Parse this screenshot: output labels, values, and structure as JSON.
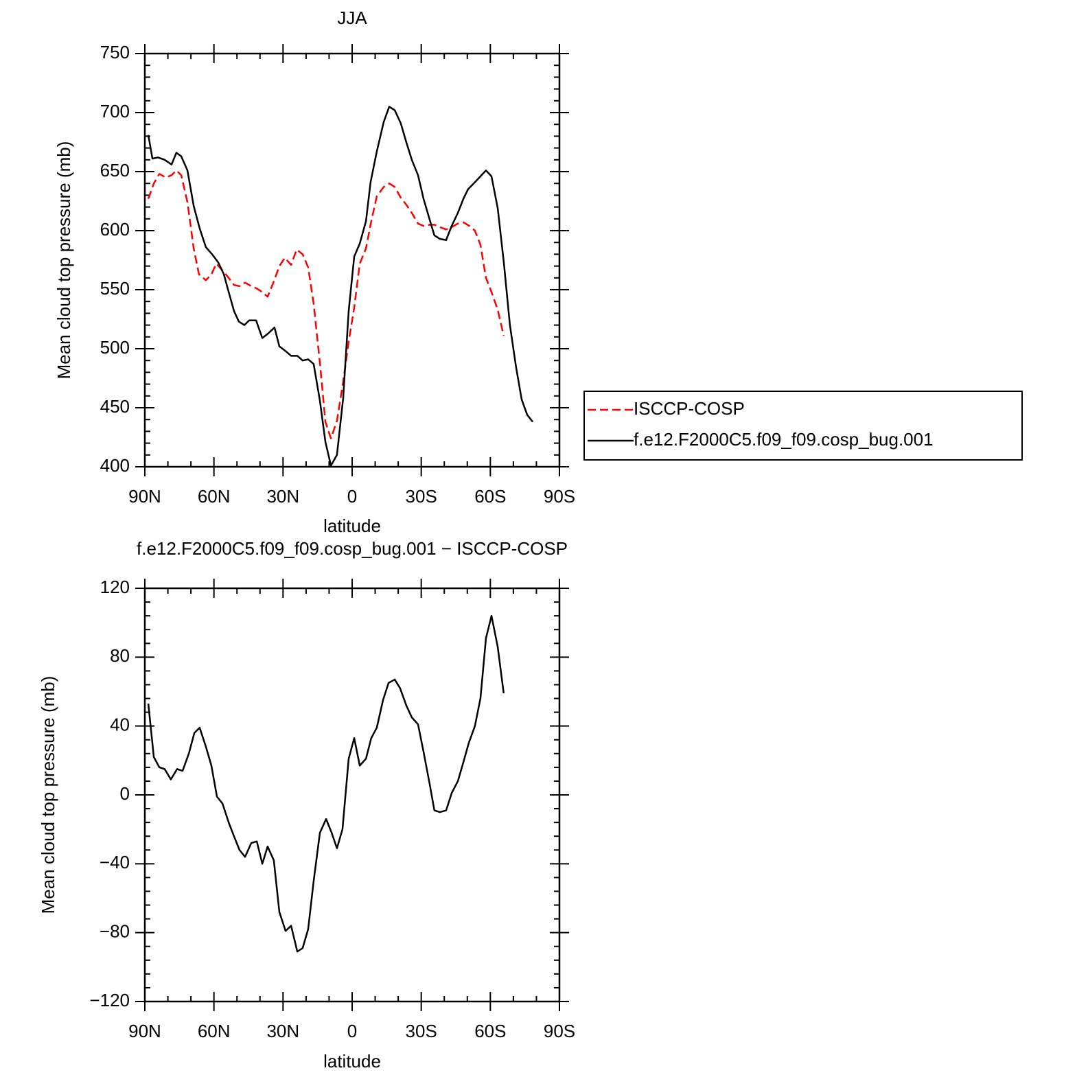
{
  "chart_data": [
    {
      "type": "line",
      "title": "JJA",
      "xlabel": "latitude",
      "ylabel": "Mean cloud top pressure (mb)",
      "xlim": [
        90,
        -90
      ],
      "xticks": [
        {
          "value": 90,
          "label": "90N"
        },
        {
          "value": 60,
          "label": "60N"
        },
        {
          "value": 30,
          "label": "30N"
        },
        0,
        {
          "value": -30,
          "label": "30S"
        },
        {
          "value": -60,
          "label": "60S"
        },
        {
          "value": -90,
          "label": "90S"
        }
      ],
      "ylim": [
        400,
        750
      ],
      "yticks": [
        400,
        450,
        500,
        550,
        600,
        650,
        700,
        750
      ],
      "legend": "right",
      "series": [
        {
          "name": "ISCCP-COSP",
          "color": "#ff0000",
          "dashed": true,
          "x": [
            88.5,
            86.1,
            83.7,
            80.8,
            78.4,
            76.3,
            74.2,
            71.5,
            68.8,
            66.5,
            63.5,
            61.1,
            59.0,
            56.6,
            54.0,
            51.3,
            48.9,
            46.5,
            43.8,
            41.4,
            39.0,
            36.7,
            34.0,
            31.6,
            29.2,
            26.5,
            24.1,
            21.5,
            19.1,
            16.7,
            14.0,
            11.6,
            9.2,
            6.6,
            3.9,
            1.5,
            -0.9,
            -3.3,
            -6.0,
            -8.3,
            -10.7,
            -13.7,
            -16.1,
            -18.5,
            -21.1,
            -23.5,
            -25.9,
            -28.6,
            -31.0,
            -33.7,
            -35.7,
            -38.1,
            -40.8,
            -43.2,
            -45.9,
            -48.3,
            -50.9,
            -53.3,
            -55.7,
            -58.1,
            -60.5,
            -63.2,
            -65.8
          ],
          "values": [
            627,
            640,
            648,
            645,
            647,
            651,
            647,
            624,
            585,
            563,
            558,
            563,
            572,
            567,
            561,
            554,
            553,
            556,
            553,
            551,
            548,
            544,
            557,
            570,
            577,
            571,
            584,
            580,
            569,
            538,
            488,
            438,
            424,
            439,
            472,
            506,
            535,
            572,
            585,
            608,
            629,
            637,
            640,
            637,
            628,
            622,
            615,
            606,
            604,
            605,
            605,
            603,
            601,
            603,
            606,
            607,
            604,
            600,
            588,
            560,
            548,
            533,
            511
          ]
        },
        {
          "name": "f.e12.F2000C5.f09_f09.cosp_bug.001",
          "color": "#000000",
          "dashed": false,
          "x": [
            88.5,
            86.7,
            84.3,
            81.4,
            78.4,
            76.3,
            74.2,
            71.5,
            68.8,
            66.2,
            63.5,
            60.8,
            58.1,
            55.7,
            53.6,
            51.3,
            49.2,
            46.8,
            44.7,
            41.7,
            39.0,
            36.4,
            33.7,
            31.6,
            28.9,
            26.5,
            23.8,
            21.5,
            19.1,
            16.7,
            14.0,
            11.6,
            9.2,
            6.6,
            3.9,
            1.5,
            -0.9,
            -3.3,
            -6.0,
            -8.0,
            -10.7,
            -13.7,
            -16.1,
            -18.5,
            -21.1,
            -23.5,
            -25.9,
            -28.6,
            -31.0,
            -33.7,
            -35.7,
            -38.1,
            -40.8,
            -43.2,
            -45.9,
            -48.3,
            -50.3,
            -53.3,
            -55.7,
            -58.1,
            -60.5,
            -63.2,
            -65.8,
            -68.5,
            -71.2,
            -73.6,
            -76.0,
            -78.4
          ],
          "values": [
            681,
            661,
            662,
            660,
            656,
            666,
            663,
            651,
            621,
            602,
            586,
            580,
            573,
            563,
            548,
            532,
            523,
            520,
            524,
            524,
            509,
            513,
            518,
            502,
            498,
            494,
            494,
            490,
            491,
            487,
            456,
            421,
            401,
            410,
            458,
            532,
            578,
            589,
            608,
            641,
            667,
            692,
            705,
            702,
            691,
            675,
            660,
            647,
            627,
            609,
            596,
            593,
            592,
            604,
            615,
            627,
            635,
            641,
            646,
            651,
            646,
            619,
            574,
            520,
            484,
            457,
            444,
            438
          ]
        }
      ]
    },
    {
      "type": "line",
      "title": "f.e12.F2000C5.f09_f09.cosp_bug.001 − ISCCP-COSP",
      "xlabel": "latitude",
      "ylabel": "Mean cloud top pressure (mb)",
      "xlim": [
        90,
        -90
      ],
      "xticks": [
        {
          "value": 90,
          "label": "90N"
        },
        {
          "value": 60,
          "label": "60N"
        },
        {
          "value": 30,
          "label": "30N"
        },
        0,
        {
          "value": -30,
          "label": "30S"
        },
        {
          "value": -60,
          "label": "60S"
        },
        {
          "value": -90,
          "label": "90S"
        }
      ],
      "ylim": [
        -120,
        120
      ],
      "yticks": [
        {
          "value": -120,
          "label": "−120"
        },
        {
          "value": -80,
          "label": "−80"
        },
        {
          "value": -40,
          "label": "−40"
        },
        0,
        40,
        80,
        120
      ],
      "series": [
        {
          "color": "#000000",
          "dashed": false,
          "x": [
            88.5,
            86.1,
            83.7,
            81.4,
            78.7,
            76.0,
            73.6,
            70.9,
            68.5,
            66.2,
            63.5,
            61.1,
            58.7,
            56.3,
            53.6,
            51.3,
            48.9,
            46.5,
            43.8,
            41.4,
            39.0,
            36.7,
            34.0,
            31.6,
            28.9,
            26.5,
            23.8,
            21.5,
            19.1,
            16.7,
            14.0,
            11.3,
            8.9,
            6.6,
            4.2,
            1.5,
            -0.9,
            -3.3,
            -6.0,
            -8.3,
            -10.7,
            -13.4,
            -15.8,
            -18.5,
            -20.8,
            -23.5,
            -25.9,
            -28.6,
            -31.0,
            -33.7,
            -35.7,
            -38.1,
            -40.8,
            -43.2,
            -45.9,
            -48.3,
            -50.6,
            -53.3,
            -55.7,
            -58.1,
            -60.5,
            -63.2,
            -65.8
          ],
          "values": [
            53,
            22,
            16,
            15,
            9,
            15,
            14,
            24,
            36,
            39,
            28,
            17,
            -1,
            -5,
            -16,
            -24,
            -32,
            -36,
            -28,
            -27,
            -40,
            -30,
            -38,
            -68,
            -79,
            -76,
            -91,
            -89,
            -78,
            -50,
            -22,
            -14,
            -22,
            -31,
            -20,
            21,
            33,
            17,
            21,
            33,
            39,
            55,
            65,
            67,
            62,
            52,
            45,
            41,
            25,
            6,
            -9,
            -10,
            -9,
            1,
            8,
            19,
            30,
            40,
            56,
            91,
            104,
            86,
            59
          ]
        }
      ]
    }
  ]
}
